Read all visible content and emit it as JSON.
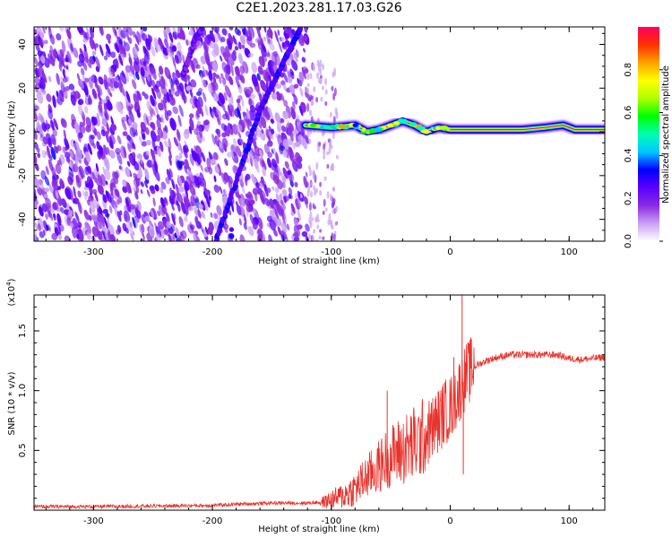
{
  "title": "C2E1.2023.281.17.03.G26",
  "chart_data": [
    {
      "type": "heatmap",
      "title": "C2E1.2023.281.17.03.G26",
      "xlabel": "Height of straight line (km)",
      "ylabel": "Frequency (Hz)",
      "xlim": [
        -350,
        130
      ],
      "ylim": [
        -50,
        48
      ],
      "xticks": [
        -300,
        -200,
        -100,
        0,
        100
      ],
      "yticks": [
        -40,
        -20,
        0,
        20,
        40
      ],
      "colorbar": {
        "label": "Normalized spectral amplitude",
        "range": [
          0,
          1
        ],
        "ticks": [
          "0.0",
          "0.2",
          "0.4",
          "0.6",
          "0.8"
        ],
        "colors": [
          "#ffffff",
          "#c9a0f5",
          "#8a2be2",
          "#5a00ff",
          "#0000ff",
          "#00c8ff",
          "#00ffb0",
          "#00ff00",
          "#b0ff00",
          "#ffff00",
          "#ffa000",
          "#ff3000",
          "#ff0060"
        ]
      },
      "noise_region_x": [
        -350,
        -120
      ],
      "scatter_region_x": [
        -120,
        -95
      ],
      "diagonal_tracks": [
        {
          "points": [
            [
              -197,
              -50
            ],
            [
              -175,
              -15
            ],
            [
              -160,
              10
            ],
            [
              -140,
              32
            ],
            [
              -125,
              48
            ]
          ],
          "peak_amplitude": 0.3
        },
        {
          "points": [
            [
              -225,
              25
            ],
            [
              -215,
              42
            ],
            [
              -208,
              48
            ]
          ],
          "peak_amplitude": 0.22
        }
      ],
      "main_band": {
        "points": [
          [
            -122,
            3
          ],
          [
            -100,
            2
          ],
          [
            -80,
            3
          ],
          [
            -70,
            0
          ],
          [
            -60,
            1
          ],
          [
            -50,
            3
          ],
          [
            -40,
            5
          ],
          [
            -30,
            3
          ],
          [
            -20,
            0
          ],
          [
            -10,
            2
          ],
          [
            0,
            1
          ],
          [
            20,
            1
          ],
          [
            60,
            1
          ],
          [
            80,
            2
          ],
          [
            95,
            3
          ],
          [
            105,
            1
          ],
          [
            130,
            1
          ]
        ],
        "peak_amplitude": 1.0
      }
    },
    {
      "type": "line",
      "xlabel": "Height of straight line (km)",
      "ylabel": "SNR (10 * v/v)",
      "multiplier_label": "(x10",
      "multiplier_exponent": "4",
      "multiplier_suffix": ")",
      "xlim": [
        -350,
        130
      ],
      "ylim": [
        0,
        1.8
      ],
      "xticks": [
        -300,
        -200,
        -100,
        0,
        100
      ],
      "yticks": [
        "0.5",
        "1.0",
        "1.5"
      ],
      "line_color": "#e8322c",
      "series": [
        {
          "x": [
            -350,
            -300,
            -250,
            -200,
            -180,
            -150,
            -120,
            -105,
            -100,
            -90,
            -80,
            -70,
            -60,
            -55,
            -50,
            -45,
            -40,
            -30,
            -20,
            -10,
            -5,
            0,
            5,
            10,
            12,
            15,
            20,
            30,
            40,
            50,
            70,
            90,
            100,
            110,
            120,
            130
          ],
          "values": [
            0.03,
            0.03,
            0.035,
            0.04,
            0.05,
            0.06,
            0.06,
            0.07,
            0.09,
            0.12,
            0.18,
            0.28,
            0.36,
            0.42,
            0.45,
            0.48,
            0.5,
            0.55,
            0.63,
            0.75,
            0.82,
            0.85,
            0.95,
            1.05,
            1.1,
            1.15,
            1.2,
            1.25,
            1.28,
            1.3,
            1.3,
            1.3,
            1.27,
            1.26,
            1.27,
            1.28
          ]
        }
      ],
      "spikes": [
        {
          "x": -53,
          "y": 1.0
        },
        {
          "x": 3,
          "y": 1.28
        },
        {
          "x": 10,
          "y": 1.8
        },
        {
          "x": 11,
          "y": 0.3
        }
      ]
    }
  ]
}
